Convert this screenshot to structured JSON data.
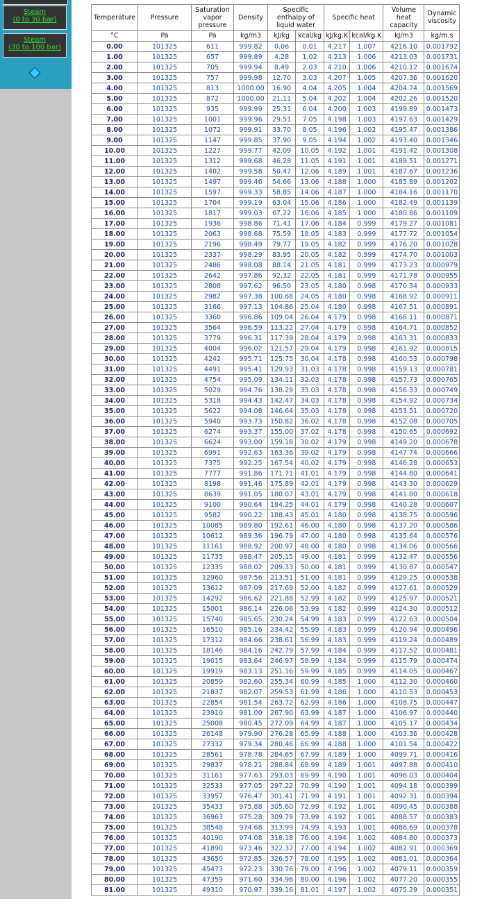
{
  "nav": {
    "links": [
      {
        "title": "Steam",
        "subtitle": "(0 to 30 bar)"
      },
      {
        "title": "Steam",
        "subtitle": "(30 to 100 bar)"
      }
    ]
  },
  "table": {
    "header": [
      "Temperature",
      "Pressure",
      "Saturation vapor pressure",
      "Density",
      "Specific enthalpy of liquid water",
      "Specific heat",
      "Volume heat capacity",
      "Dynamic viscosity"
    ],
    "units": [
      "°C",
      "Pa",
      "Pa",
      "kg/m3",
      "kJ/kg",
      "kcal/kg",
      "kJ/kg.K",
      "kcal/kg.K",
      "kJ/m3",
      "kg/m.s"
    ],
    "rows": [
      [
        "0.00",
        "101325",
        "611",
        "999.82",
        "0.06",
        "0.01",
        "4.217",
        "1.007",
        "4216.10",
        "0.001792"
      ],
      [
        "1.00",
        "101325",
        "657",
        "999.89",
        "4.28",
        "1.02",
        "4.213",
        "1.006",
        "4213.03",
        "0.001731"
      ],
      [
        "2.00",
        "101325",
        "705",
        "999.94",
        "8.49",
        "2.03",
        "4.210",
        "1.006",
        "4210.12",
        "0.001674"
      ],
      [
        "3.00",
        "101325",
        "757",
        "999.98",
        "12.70",
        "3.03",
        "4.207",
        "1.005",
        "4207.36",
        "0.001620"
      ],
      [
        "4.00",
        "101325",
        "813",
        "1000.00",
        "16.90",
        "4.04",
        "4.205",
        "1.004",
        "4204.74",
        "0.001569"
      ],
      [
        "5.00",
        "101325",
        "872",
        "1000.00",
        "21.11",
        "5.04",
        "4.202",
        "1.004",
        "4202.26",
        "0.001520"
      ],
      [
        "6.00",
        "101325",
        "935",
        "999.99",
        "25.31",
        "6.04",
        "4.200",
        "1.003",
        "4199.89",
        "0.001473"
      ],
      [
        "7.00",
        "101325",
        "1001",
        "999.96",
        "29.51",
        "7.05",
        "4.198",
        "1.003",
        "4197.63",
        "0.001429"
      ],
      [
        "8.00",
        "101325",
        "1072",
        "999.91",
        "33.70",
        "8.05",
        "4.196",
        "1.002",
        "4195.47",
        "0.001386"
      ],
      [
        "9.00",
        "101325",
        "1147",
        "999.85",
        "37.90",
        "9.05",
        "4.194",
        "1.002",
        "4193.40",
        "0.001346"
      ],
      [
        "10.00",
        "101325",
        "1227",
        "999.77",
        "42.09",
        "10.05",
        "4.192",
        "1.001",
        "4191.42",
        "0.001308"
      ],
      [
        "11.00",
        "101325",
        "1312",
        "999.68",
        "46.28",
        "11.05",
        "4.191",
        "1.001",
        "4189.51",
        "0.001271"
      ],
      [
        "12.00",
        "101325",
        "1402",
        "999.58",
        "50.47",
        "12.06",
        "4.189",
        "1.001",
        "4187.67",
        "0.001236"
      ],
      [
        "13.00",
        "101325",
        "1497",
        "999.46",
        "54.66",
        "13.06",
        "4.188",
        "1.000",
        "4185.89",
        "0.001202"
      ],
      [
        "14.00",
        "101325",
        "1597",
        "999.33",
        "58.85",
        "14.06",
        "4.187",
        "1.000",
        "4184.16",
        "0.001170"
      ],
      [
        "15.00",
        "101325",
        "1704",
        "999.19",
        "63.04",
        "15.06",
        "4.186",
        "1.000",
        "4182.49",
        "0.001139"
      ],
      [
        "16.00",
        "101325",
        "1817",
        "999.03",
        "67.22",
        "16.06",
        "4.185",
        "1.000",
        "4180.86",
        "0.001109"
      ],
      [
        "17.00",
        "101325",
        "1936",
        "998.86",
        "71.41",
        "17.06",
        "4.184",
        "0.999",
        "4179.27",
        "0.001081"
      ],
      [
        "18.00",
        "101325",
        "2063",
        "998.68",
        "75.59",
        "18.05",
        "4.183",
        "0.999",
        "4177.72",
        "0.001054"
      ],
      [
        "19.00",
        "101325",
        "2196",
        "998.49",
        "79.77",
        "19.05",
        "4.182",
        "0.999",
        "4176.20",
        "0.001028"
      ],
      [
        "20.00",
        "101325",
        "2337",
        "998.29",
        "83.95",
        "20.05",
        "4.182",
        "0.999",
        "4174.70",
        "0.001003"
      ],
      [
        "21.00",
        "101325",
        "2486",
        "998.08",
        "88.14",
        "21.05",
        "4.181",
        "0.999",
        "4173.23",
        "0.000979"
      ],
      [
        "22.00",
        "101325",
        "2642",
        "997.86",
        "92.32",
        "22.05",
        "4.181",
        "0.999",
        "4171.78",
        "0.000955"
      ],
      [
        "23.00",
        "101325",
        "2808",
        "997.62",
        "96.50",
        "23.05",
        "4.180",
        "0.998",
        "4170.34",
        "0.000933"
      ],
      [
        "24.00",
        "101325",
        "2982",
        "997.38",
        "100.68",
        "24.05",
        "4.180",
        "0.998",
        "4168.92",
        "0.000911"
      ],
      [
        "25.00",
        "101325",
        "3166",
        "997.13",
        "104.86",
        "25.04",
        "4.180",
        "0.998",
        "4167.51",
        "0.000891"
      ],
      [
        "26.00",
        "101325",
        "3360",
        "996.86",
        "109.04",
        "26.04",
        "4.179",
        "0.998",
        "4166.11",
        "0.000871"
      ],
      [
        "27.00",
        "101325",
        "3564",
        "996.59",
        "113.22",
        "27.04",
        "4.179",
        "0.998",
        "4164.71",
        "0.000852"
      ],
      [
        "28.00",
        "101325",
        "3779",
        "996.31",
        "117.39",
        "28.04",
        "4.179",
        "0.998",
        "4163.31",
        "0.000833"
      ],
      [
        "29.00",
        "101325",
        "4004",
        "996.02",
        "121.57",
        "29.04",
        "4.179",
        "0.998",
        "4161.92",
        "0.000815"
      ],
      [
        "30.00",
        "101325",
        "4242",
        "995.71",
        "125.75",
        "30.04",
        "4.178",
        "0.998",
        "4160.53",
        "0.000798"
      ],
      [
        "31.00",
        "101325",
        "4491",
        "995.41",
        "129.93",
        "31.03",
        "4.178",
        "0.998",
        "4159.13",
        "0.000781"
      ],
      [
        "32.00",
        "101325",
        "4754",
        "995.09",
        "134.11",
        "32.03",
        "4.178",
        "0.998",
        "4157.73",
        "0.000765"
      ],
      [
        "33.00",
        "101325",
        "5029",
        "994.76",
        "138.29",
        "33.03",
        "4.178",
        "0.998",
        "4156.33",
        "0.000749"
      ],
      [
        "34.00",
        "101325",
        "5318",
        "994.43",
        "142.47",
        "34.03",
        "4.178",
        "0.998",
        "4154.92",
        "0.000734"
      ],
      [
        "35.00",
        "101325",
        "5622",
        "994.08",
        "146.64",
        "35.03",
        "4.178",
        "0.998",
        "4153.51",
        "0.000720"
      ],
      [
        "36.00",
        "101325",
        "5940",
        "993.73",
        "150.82",
        "36.02",
        "4.178",
        "0.998",
        "4152.08",
        "0.000705"
      ],
      [
        "37.00",
        "101325",
        "6274",
        "993.37",
        "155.00",
        "37.02",
        "4.178",
        "0.998",
        "4150.65",
        "0.000692"
      ],
      [
        "38.00",
        "101325",
        "6624",
        "993.00",
        "159.18",
        "38.02",
        "4.179",
        "0.998",
        "4149.20",
        "0.000678"
      ],
      [
        "39.00",
        "101325",
        "6991",
        "992.63",
        "163.36",
        "39.02",
        "4.179",
        "0.998",
        "4147.74",
        "0.000666"
      ],
      [
        "40.00",
        "101325",
        "7375",
        "992.25",
        "167.54",
        "40.02",
        "4.179",
        "0.998",
        "4146.28",
        "0.000653"
      ],
      [
        "41.00",
        "101325",
        "7777",
        "991.86",
        "171.71",
        "41.01",
        "4.179",
        "0.998",
        "4144.80",
        "0.000641"
      ],
      [
        "42.00",
        "101325",
        "8198",
        "991.46",
        "175.89",
        "42.01",
        "4.179",
        "0.998",
        "4143.30",
        "0.000629"
      ],
      [
        "43.00",
        "101325",
        "8639",
        "991.05",
        "180.07",
        "43.01",
        "4.179",
        "0.998",
        "4141.80",
        "0.000618"
      ],
      [
        "44.00",
        "101325",
        "9100",
        "990.64",
        "184.25",
        "44.01",
        "4.179",
        "0.998",
        "4140.28",
        "0.000607"
      ],
      [
        "45.00",
        "101325",
        "9582",
        "990.22",
        "188.43",
        "45.01",
        "4.180",
        "0.998",
        "4138.75",
        "0.000596"
      ],
      [
        "46.00",
        "101325",
        "10085",
        "989.80",
        "192.61",
        "46.00",
        "4.180",
        "0.998",
        "4137.20",
        "0.000586"
      ],
      [
        "47.00",
        "101325",
        "10612",
        "989.36",
        "196.79",
        "47.00",
        "4.180",
        "0.998",
        "4135.64",
        "0.000576"
      ],
      [
        "48.00",
        "101325",
        "11161",
        "988.92",
        "200.97",
        "48.00",
        "4.180",
        "0.998",
        "4134.06",
        "0.000566"
      ],
      [
        "49.00",
        "101325",
        "11735",
        "988.47",
        "205.15",
        "49.00",
        "4.181",
        "0.999",
        "4132.47",
        "0.000556"
      ],
      [
        "50.00",
        "101325",
        "12335",
        "988.02",
        "209.33",
        "50.00",
        "4.181",
        "0.999",
        "4130.87",
        "0.000547"
      ],
      [
        "51.00",
        "101325",
        "12960",
        "987.56",
        "213.51",
        "51.00",
        "4.181",
        "0.999",
        "4129.25",
        "0.000538"
      ],
      [
        "52.00",
        "101325",
        "13612",
        "987.09",
        "217.69",
        "52.00",
        "4.182",
        "0.999",
        "4127.61",
        "0.000529"
      ],
      [
        "53.00",
        "101325",
        "14292",
        "986.62",
        "221.88",
        "52.99",
        "4.182",
        "0.999",
        "4125.97",
        "0.000521"
      ],
      [
        "54.00",
        "101325",
        "15001",
        "986.14",
        "226.06",
        "53.99",
        "4.182",
        "0.999",
        "4124.30",
        "0.000512"
      ],
      [
        "55.00",
        "101325",
        "15740",
        "985.65",
        "230.24",
        "54.99",
        "4.183",
        "0.999",
        "4122.63",
        "0.000504"
      ],
      [
        "56.00",
        "101325",
        "16510",
        "985.16",
        "234.42",
        "55.99",
        "4.183",
        "0.999",
        "4120.94",
        "0.000496"
      ],
      [
        "57.00",
        "101325",
        "17312",
        "984.66",
        "238.61",
        "56.99",
        "4.183",
        "0.999",
        "4119.24",
        "0.000489"
      ],
      [
        "58.00",
        "101325",
        "18146",
        "984.16",
        "242.79",
        "57.99",
        "4.184",
        "0.999",
        "4117.52",
        "0.000481"
      ],
      [
        "59.00",
        "101325",
        "19015",
        "983.64",
        "246.97",
        "58.99",
        "4.184",
        "0.999",
        "4115.79",
        "0.000474"
      ],
      [
        "60.00",
        "101325",
        "19919",
        "983.13",
        "251.16",
        "59.99",
        "4.185",
        "0.999",
        "4114.05",
        "0.000467"
      ],
      [
        "61.00",
        "101325",
        "20859",
        "982.60",
        "255.34",
        "60.99",
        "4.185",
        "1.000",
        "4112.30",
        "0.000460"
      ],
      [
        "62.00",
        "101325",
        "21837",
        "982.07",
        "259.53",
        "61.99",
        "4.186",
        "1.000",
        "4110.53",
        "0.000453"
      ],
      [
        "63.00",
        "101325",
        "22854",
        "981.54",
        "263.72",
        "62.99",
        "4.186",
        "1.000",
        "4108.75",
        "0.000447"
      ],
      [
        "64.00",
        "101325",
        "23910",
        "981.00",
        "267.90",
        "63.99",
        "4.187",
        "1.000",
        "4106.97",
        "0.000440"
      ],
      [
        "65.00",
        "101325",
        "25008",
        "980.45",
        "272.09",
        "64.99",
        "4.187",
        "1.000",
        "4105.17",
        "0.000434"
      ],
      [
        "66.00",
        "101325",
        "26148",
        "979.90",
        "276.28",
        "65.99",
        "4.188",
        "1.000",
        "4103.36",
        "0.000428"
      ],
      [
        "67.00",
        "101325",
        "27332",
        "979.34",
        "280.46",
        "66.99",
        "4.188",
        "1.000",
        "4101.54",
        "0.000422"
      ],
      [
        "68.00",
        "101325",
        "28561",
        "978.78",
        "284.65",
        "67.99",
        "4.189",
        "1.000",
        "4099.71",
        "0.000416"
      ],
      [
        "69.00",
        "101325",
        "29837",
        "978.21",
        "288.84",
        "68.99",
        "4.189",
        "1.001",
        "4097.88",
        "0.000410"
      ],
      [
        "70.00",
        "101325",
        "31161",
        "977.63",
        "293.03",
        "69.99",
        "4.190",
        "1.001",
        "4096.03",
        "0.000404"
      ],
      [
        "71.00",
        "101325",
        "32533",
        "977.05",
        "297.22",
        "70.99",
        "4.190",
        "1.001",
        "4094.18",
        "0.000399"
      ],
      [
        "72.00",
        "101325",
        "33957",
        "976.47",
        "301.41",
        "71.99",
        "4.191",
        "1.001",
        "4092.31",
        "0.000394"
      ],
      [
        "73.00",
        "101325",
        "35433",
        "975.88",
        "305.60",
        "72.99",
        "4.192",
        "1.001",
        "4090.45",
        "0.000388"
      ],
      [
        "74.00",
        "101325",
        "36963",
        "975.28",
        "309.79",
        "73.99",
        "4.192",
        "1.001",
        "4088.57",
        "0.000383"
      ],
      [
        "75.00",
        "101325",
        "38548",
        "974.68",
        "313.99",
        "74.99",
        "4.193",
        "1.001",
        "4086.69",
        "0.000378"
      ],
      [
        "76.00",
        "101325",
        "40190",
        "974.08",
        "318.18",
        "76.00",
        "4.194",
        "1.002",
        "4084.80",
        "0.000373"
      ],
      [
        "77.00",
        "101325",
        "41890",
        "973.46",
        "322.37",
        "77.00",
        "4.194",
        "1.002",
        "4082.91",
        "0.000369"
      ],
      [
        "78.00",
        "101325",
        "43650",
        "972.85",
        "326.57",
        "78.00",
        "4.195",
        "1.002",
        "4081.01",
        "0.000364"
      ],
      [
        "79.00",
        "101325",
        "45473",
        "972.23",
        "330.76",
        "79.00",
        "4.196",
        "1.002",
        "4079.11",
        "0.000359"
      ],
      [
        "80.00",
        "101325",
        "47359",
        "971.60",
        "334.96",
        "80.00",
        "4.196",
        "1.002",
        "4077.20",
        "0.000355"
      ],
      [
        "81.00",
        "101325",
        "49310",
        "970.97",
        "339.16",
        "81.01",
        "4.197",
        "1.002",
        "4075.29",
        "0.000351"
      ]
    ]
  }
}
